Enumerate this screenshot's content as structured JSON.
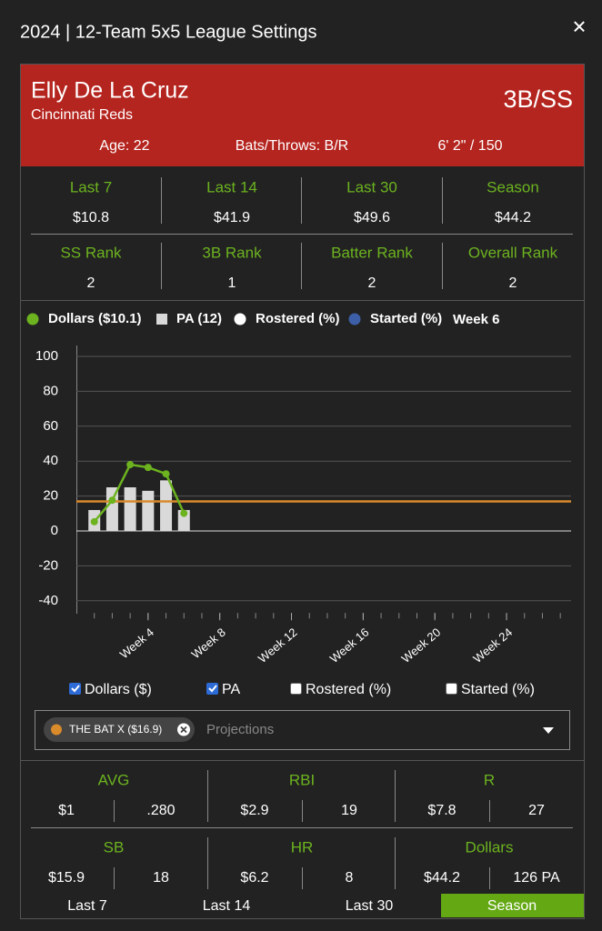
{
  "header": {
    "title": "2024 | 12-Team 5x5 League Settings",
    "close": "✕"
  },
  "player": {
    "name": "Elly De La Cruz",
    "team": "Cincinnati Reds",
    "position": "3B/SS",
    "age": "Age: 22",
    "bats_throws": "Bats/Throws: B/R",
    "height_weight": "6' 2\" / 150"
  },
  "summary": [
    [
      {
        "label": "Last 7",
        "value": "$10.8"
      },
      {
        "label": "Last 14",
        "value": "$41.9"
      },
      {
        "label": "Last 30",
        "value": "$49.6"
      },
      {
        "label": "Season",
        "value": "$44.2"
      }
    ],
    [
      {
        "label": "SS Rank",
        "value": "2"
      },
      {
        "label": "3B Rank",
        "value": "1"
      },
      {
        "label": "Batter Rank",
        "value": "2"
      },
      {
        "label": "Overall Rank",
        "value": "2"
      }
    ]
  ],
  "chart_data": {
    "type": "combo",
    "legend_title": "Week 6",
    "x": [
      1,
      2,
      3,
      4,
      5,
      6
    ],
    "xlim": [
      0,
      27.6
    ],
    "xticks": [
      {
        "value": 4,
        "label": "Week 4"
      },
      {
        "value": 8,
        "label": "Week 8"
      },
      {
        "value": 12,
        "label": "Week 12"
      },
      {
        "value": 16,
        "label": "Week 16"
      },
      {
        "value": 20,
        "label": "Week 20"
      },
      {
        "value": 24,
        "label": "Week 24"
      }
    ],
    "ylim": [
      -47,
      106
    ],
    "yticks": [
      -40,
      -20,
      0,
      20,
      40,
      60,
      80,
      100
    ],
    "grid": true,
    "series": [
      {
        "name": "Dollars ($10.1)",
        "kind": "line",
        "color": "#6cb31f",
        "values": [
          5.3,
          17.6,
          38,
          36.4,
          32.7,
          10.1
        ]
      },
      {
        "name": "PA (12)",
        "kind": "bar",
        "color": "#d9d9d9",
        "values": [
          12,
          25,
          25,
          23,
          29,
          12
        ]
      },
      {
        "name": "Rostered (%)",
        "kind": "line",
        "color": "#ffffff",
        "values": [
          null,
          null,
          null,
          null,
          null,
          null
        ]
      },
      {
        "name": "Started (%)",
        "kind": "line",
        "color": "#3c5fa8",
        "values": [
          null,
          null,
          null,
          null,
          null,
          null
        ]
      }
    ],
    "reference_lines": [
      {
        "name": "THE BAT X ($16.9)",
        "value": 16.9,
        "color": "#d98a2b"
      }
    ]
  },
  "controls": {
    "toggles": [
      {
        "label": "Dollars ($)",
        "checked": true
      },
      {
        "label": "PA",
        "checked": true
      },
      {
        "label": "Rostered (%)",
        "checked": false
      },
      {
        "label": "Started (%)",
        "checked": false
      }
    ],
    "placeholder": "Projections"
  },
  "breakdown": [
    {
      "label": "AVG",
      "dollars": "$1",
      "stat": ".280"
    },
    {
      "label": "RBI",
      "dollars": "$2.9",
      "stat": "19"
    },
    {
      "label": "R",
      "dollars": "$7.8",
      "stat": "27"
    },
    {
      "label": "SB",
      "dollars": "$15.9",
      "stat": "18"
    },
    {
      "label": "HR",
      "dollars": "$6.2",
      "stat": "8"
    },
    {
      "label": "Dollars",
      "dollars": "$44.2",
      "stat": "126 PA"
    }
  ],
  "tabs": {
    "items": [
      "Last 7",
      "Last 14",
      "Last 30",
      "Season"
    ],
    "active": 3
  }
}
